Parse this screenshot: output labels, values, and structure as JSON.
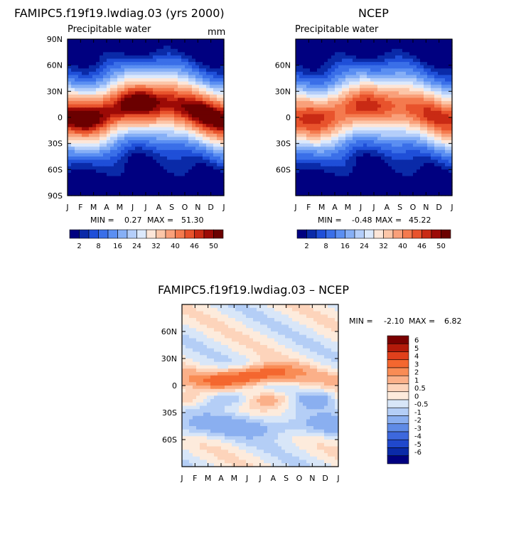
{
  "chart_data": [
    {
      "type": "heatmap",
      "title": "FAMIPC5.f19f19.lwdiag.03 (yrs 2000)",
      "subtitle": "Precipitable water",
      "units": "mm",
      "x_ticks": [
        "J",
        "F",
        "M",
        "A",
        "M",
        "J",
        "J",
        "A",
        "S",
        "O",
        "N",
        "D",
        "J"
      ],
      "y_ticks": [
        "90N",
        "60N",
        "30N",
        "0",
        "30S",
        "60S",
        "90S"
      ],
      "stats": {
        "min_label": "MIN =",
        "min": "0.27",
        "max_label": "MAX =",
        "max": "51.30"
      },
      "colorbar": {
        "labels": [
          "2",
          "8",
          "16",
          "24",
          "32",
          "40",
          "46",
          "50"
        ],
        "colors": [
          "#000080",
          "#0a2aa8",
          "#1f4fd8",
          "#3a6fe8",
          "#5b8ff2",
          "#86aff6",
          "#b4cefa",
          "#dce9fc",
          "#fde6d8",
          "#fcc6a8",
          "#f9a07a",
          "#f47a4e",
          "#e8532c",
          "#c92a14",
          "#9c0a06",
          "#6b0000"
        ]
      },
      "field": {
        "max_value": 51.3,
        "itcz_lat": 8,
        "seasonal_amp": 10
      }
    },
    {
      "type": "heatmap",
      "title": "NCEP",
      "subtitle": "Precipitable water",
      "x_ticks": [
        "J",
        "F",
        "M",
        "A",
        "M",
        "J",
        "J",
        "A",
        "S",
        "O",
        "N",
        "D",
        "J"
      ],
      "y_ticks": [
        "60N",
        "30N",
        "0",
        "30S",
        "60S"
      ],
      "stats": {
        "min_label": "MIN =",
        "min": "-0.48",
        "max_label": "MAX =",
        "max": "45.22"
      },
      "colorbar": {
        "labels": [
          "2",
          "8",
          "16",
          "24",
          "32",
          "40",
          "46",
          "50"
        ],
        "colors": [
          "#000080",
          "#0a2aa8",
          "#1f4fd8",
          "#3a6fe8",
          "#5b8ff2",
          "#86aff6",
          "#b4cefa",
          "#dce9fc",
          "#fde6d8",
          "#fcc6a8",
          "#f9a07a",
          "#f47a4e",
          "#e8532c",
          "#c92a14",
          "#9c0a06",
          "#6b0000"
        ]
      },
      "field": {
        "max_value": 45.22,
        "itcz_lat": 6,
        "seasonal_amp": 9
      }
    },
    {
      "type": "heatmap",
      "title": "FAMIPC5.f19f19.lwdiag.03 – NCEP",
      "x_ticks": [
        "J",
        "F",
        "M",
        "A",
        "M",
        "J",
        "J",
        "A",
        "S",
        "O",
        "N",
        "D",
        "J"
      ],
      "y_ticks": [
        "60N",
        "30N",
        "0",
        "30S",
        "60S"
      ],
      "stats": {
        "min_label": "MIN =",
        "min": "-2.10",
        "max_label": "MAX =",
        "max": "6.82"
      },
      "colorbar": {
        "labels": [
          "6",
          "5",
          "4",
          "3",
          "2",
          "1",
          "0.5",
          "0",
          "-0.5",
          "-1",
          "-2",
          "-3",
          "-4",
          "-5",
          "-6"
        ],
        "colors": [
          "#7a0000",
          "#b31a0a",
          "#e0401c",
          "#f4672f",
          "#f98c55",
          "#fbb089",
          "#fdd4bb",
          "#fdebdc",
          "#d8e6f8",
          "#b4cef6",
          "#8aaff0",
          "#5f8be6",
          "#3d68dd",
          "#2048cc",
          "#0a2aa8",
          "#000080"
        ]
      },
      "field": {
        "min_value": -2.1,
        "max_value": 6.82
      }
    }
  ]
}
